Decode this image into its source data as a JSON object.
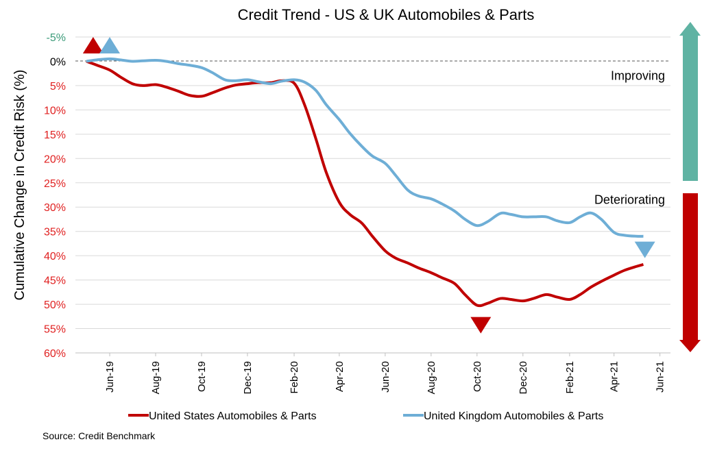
{
  "chart_data": {
    "type": "line",
    "title": "Credit Trend - US & UK Automobiles & Parts",
    "ylabel": "Cumulative Change in Credit Risk (%)",
    "xlabel": "",
    "ylim": [
      -5,
      60
    ],
    "y_inverted": true,
    "yticks": [
      {
        "value": -5,
        "label": "-5%",
        "color": "#3a9a78"
      },
      {
        "value": 0,
        "label": "0%",
        "color": "#000000"
      },
      {
        "value": 5,
        "label": "5%",
        "color": "#e02020"
      },
      {
        "value": 10,
        "label": "10%",
        "color": "#e02020"
      },
      {
        "value": 15,
        "label": "15%",
        "color": "#e02020"
      },
      {
        "value": 20,
        "label": "20%",
        "color": "#e02020"
      },
      {
        "value": 25,
        "label": "25%",
        "color": "#e02020"
      },
      {
        "value": 30,
        "label": "30%",
        "color": "#e02020"
      },
      {
        "value": 35,
        "label": "35%",
        "color": "#e02020"
      },
      {
        "value": 40,
        "label": "40%",
        "color": "#e02020"
      },
      {
        "value": 45,
        "label": "45%",
        "color": "#e02020"
      },
      {
        "value": 50,
        "label": "50%",
        "color": "#e02020"
      },
      {
        "value": 55,
        "label": "55%",
        "color": "#e02020"
      },
      {
        "value": 60,
        "label": "60%",
        "color": "#e02020"
      }
    ],
    "xlim": [
      "2019-05-01",
      "2021-06-15"
    ],
    "xticks": [
      {
        "date": "2019-06-01",
        "label": "Jun-19"
      },
      {
        "date": "2019-08-01",
        "label": "Aug-19"
      },
      {
        "date": "2019-10-01",
        "label": "Oct-19"
      },
      {
        "date": "2019-12-01",
        "label": "Dec-19"
      },
      {
        "date": "2020-02-01",
        "label": "Feb-20"
      },
      {
        "date": "2020-04-01",
        "label": "Apr-20"
      },
      {
        "date": "2020-06-01",
        "label": "Jun-20"
      },
      {
        "date": "2020-08-01",
        "label": "Aug-20"
      },
      {
        "date": "2020-10-01",
        "label": "Oct-20"
      },
      {
        "date": "2020-12-01",
        "label": "Dec-20"
      },
      {
        "date": "2021-02-01",
        "label": "Feb-21"
      },
      {
        "date": "2021-04-01",
        "label": "Apr-21"
      },
      {
        "date": "2021-06-01",
        "label": "Jun-21"
      }
    ],
    "grid": true,
    "legend_position": "bottom",
    "series": [
      {
        "name": "United States Automobiles & Parts",
        "color": "#c00000",
        "marker_color": "#c00000",
        "points": [
          [
            "2019-05-01",
            0.0
          ],
          [
            "2019-05-15",
            0.8
          ],
          [
            "2019-06-01",
            1.8
          ],
          [
            "2019-06-15",
            3.2
          ],
          [
            "2019-07-01",
            4.6
          ],
          [
            "2019-07-15",
            5.0
          ],
          [
            "2019-08-01",
            4.8
          ],
          [
            "2019-08-15",
            5.3
          ],
          [
            "2019-09-01",
            6.2
          ],
          [
            "2019-09-15",
            7.0
          ],
          [
            "2019-10-01",
            7.2
          ],
          [
            "2019-10-15",
            6.5
          ],
          [
            "2019-11-01",
            5.5
          ],
          [
            "2019-11-15",
            4.9
          ],
          [
            "2019-12-01",
            4.6
          ],
          [
            "2019-12-15",
            4.4
          ],
          [
            "2020-01-01",
            4.4
          ],
          [
            "2020-01-15",
            4.0
          ],
          [
            "2020-02-01",
            4.5
          ],
          [
            "2020-02-15",
            9.0
          ],
          [
            "2020-03-01",
            16.0
          ],
          [
            "2020-03-15",
            23.0
          ],
          [
            "2020-04-01",
            29.0
          ],
          [
            "2020-04-15",
            31.5
          ],
          [
            "2020-05-01",
            33.3
          ],
          [
            "2020-05-15",
            36.0
          ],
          [
            "2020-06-01",
            39.0
          ],
          [
            "2020-06-15",
            40.5
          ],
          [
            "2020-07-01",
            41.5
          ],
          [
            "2020-07-15",
            42.5
          ],
          [
            "2020-08-01",
            43.5
          ],
          [
            "2020-08-15",
            44.5
          ],
          [
            "2020-09-01",
            45.7
          ],
          [
            "2020-09-15",
            48.0
          ],
          [
            "2020-10-01",
            50.2
          ],
          [
            "2020-10-15",
            49.8
          ],
          [
            "2020-11-01",
            48.8
          ],
          [
            "2020-11-15",
            49.0
          ],
          [
            "2020-12-01",
            49.3
          ],
          [
            "2020-12-15",
            48.8
          ],
          [
            "2021-01-01",
            48.0
          ],
          [
            "2021-01-15",
            48.5
          ],
          [
            "2021-02-01",
            49.0
          ],
          [
            "2021-02-15",
            48.0
          ],
          [
            "2021-03-01",
            46.5
          ],
          [
            "2021-03-15",
            45.3
          ],
          [
            "2021-04-01",
            44.0
          ],
          [
            "2021-04-15",
            43.0
          ],
          [
            "2021-05-01",
            42.2
          ],
          [
            "2021-05-10",
            41.8
          ]
        ],
        "start_marker": {
          "date": "2019-05-10",
          "value": -3.3,
          "direction": "up"
        },
        "end_marker": {
          "date": "2020-10-06",
          "value": 54.3,
          "direction": "down"
        }
      },
      {
        "name": "United Kingdom Automobiles & Parts",
        "color": "#6eaed6",
        "marker_color": "#6eaed6",
        "points": [
          [
            "2019-05-01",
            0.0
          ],
          [
            "2019-05-15",
            -0.3
          ],
          [
            "2019-06-01",
            -0.5
          ],
          [
            "2019-06-15",
            -0.3
          ],
          [
            "2019-07-01",
            0.0
          ],
          [
            "2019-07-15",
            -0.1
          ],
          [
            "2019-08-01",
            -0.2
          ],
          [
            "2019-08-15",
            0.0
          ],
          [
            "2019-09-01",
            0.5
          ],
          [
            "2019-09-15",
            0.8
          ],
          [
            "2019-10-01",
            1.3
          ],
          [
            "2019-10-15",
            2.3
          ],
          [
            "2019-11-01",
            3.8
          ],
          [
            "2019-11-15",
            4.0
          ],
          [
            "2019-12-01",
            3.8
          ],
          [
            "2019-12-15",
            4.2
          ],
          [
            "2020-01-01",
            4.6
          ],
          [
            "2020-01-15",
            4.1
          ],
          [
            "2020-02-01",
            3.8
          ],
          [
            "2020-02-15",
            4.3
          ],
          [
            "2020-03-01",
            6.0
          ],
          [
            "2020-03-15",
            9.0
          ],
          [
            "2020-04-01",
            12.0
          ],
          [
            "2020-04-15",
            14.8
          ],
          [
            "2020-05-01",
            17.5
          ],
          [
            "2020-05-15",
            19.5
          ],
          [
            "2020-06-01",
            21.0
          ],
          [
            "2020-06-15",
            23.5
          ],
          [
            "2020-07-01",
            26.5
          ],
          [
            "2020-07-15",
            27.7
          ],
          [
            "2020-08-01",
            28.3
          ],
          [
            "2020-08-15",
            29.3
          ],
          [
            "2020-09-01",
            30.8
          ],
          [
            "2020-09-15",
            32.5
          ],
          [
            "2020-10-01",
            33.8
          ],
          [
            "2020-10-15",
            33.0
          ],
          [
            "2020-11-01",
            31.3
          ],
          [
            "2020-11-15",
            31.5
          ],
          [
            "2020-12-01",
            32.0
          ],
          [
            "2020-12-15",
            32.0
          ],
          [
            "2021-01-01",
            32.0
          ],
          [
            "2021-01-15",
            32.8
          ],
          [
            "2021-02-01",
            33.2
          ],
          [
            "2021-02-15",
            32.0
          ],
          [
            "2021-03-01",
            31.2
          ],
          [
            "2021-03-15",
            32.5
          ],
          [
            "2021-04-01",
            35.2
          ],
          [
            "2021-04-15",
            35.8
          ],
          [
            "2021-05-01",
            36.0
          ],
          [
            "2021-05-10",
            36.0
          ]
        ],
        "start_marker": {
          "date": "2019-06-01",
          "value": -3.3,
          "direction": "up"
        },
        "end_marker": {
          "date": "2021-05-12",
          "value": 38.8,
          "direction": "down"
        }
      }
    ],
    "annotations": [
      {
        "text": "Improving",
        "date": "2021-05-01",
        "value": 3.0
      },
      {
        "text": "Deteriorating",
        "date": "2021-05-01",
        "value": 28.5
      }
    ],
    "side_arrows": [
      {
        "name": "improving-arrow",
        "direction": "up",
        "color": "#5fb3a3"
      },
      {
        "name": "deteriorating-arrow",
        "direction": "down",
        "color": "#c00000"
      }
    ],
    "source": "Source: Credit Benchmark"
  }
}
